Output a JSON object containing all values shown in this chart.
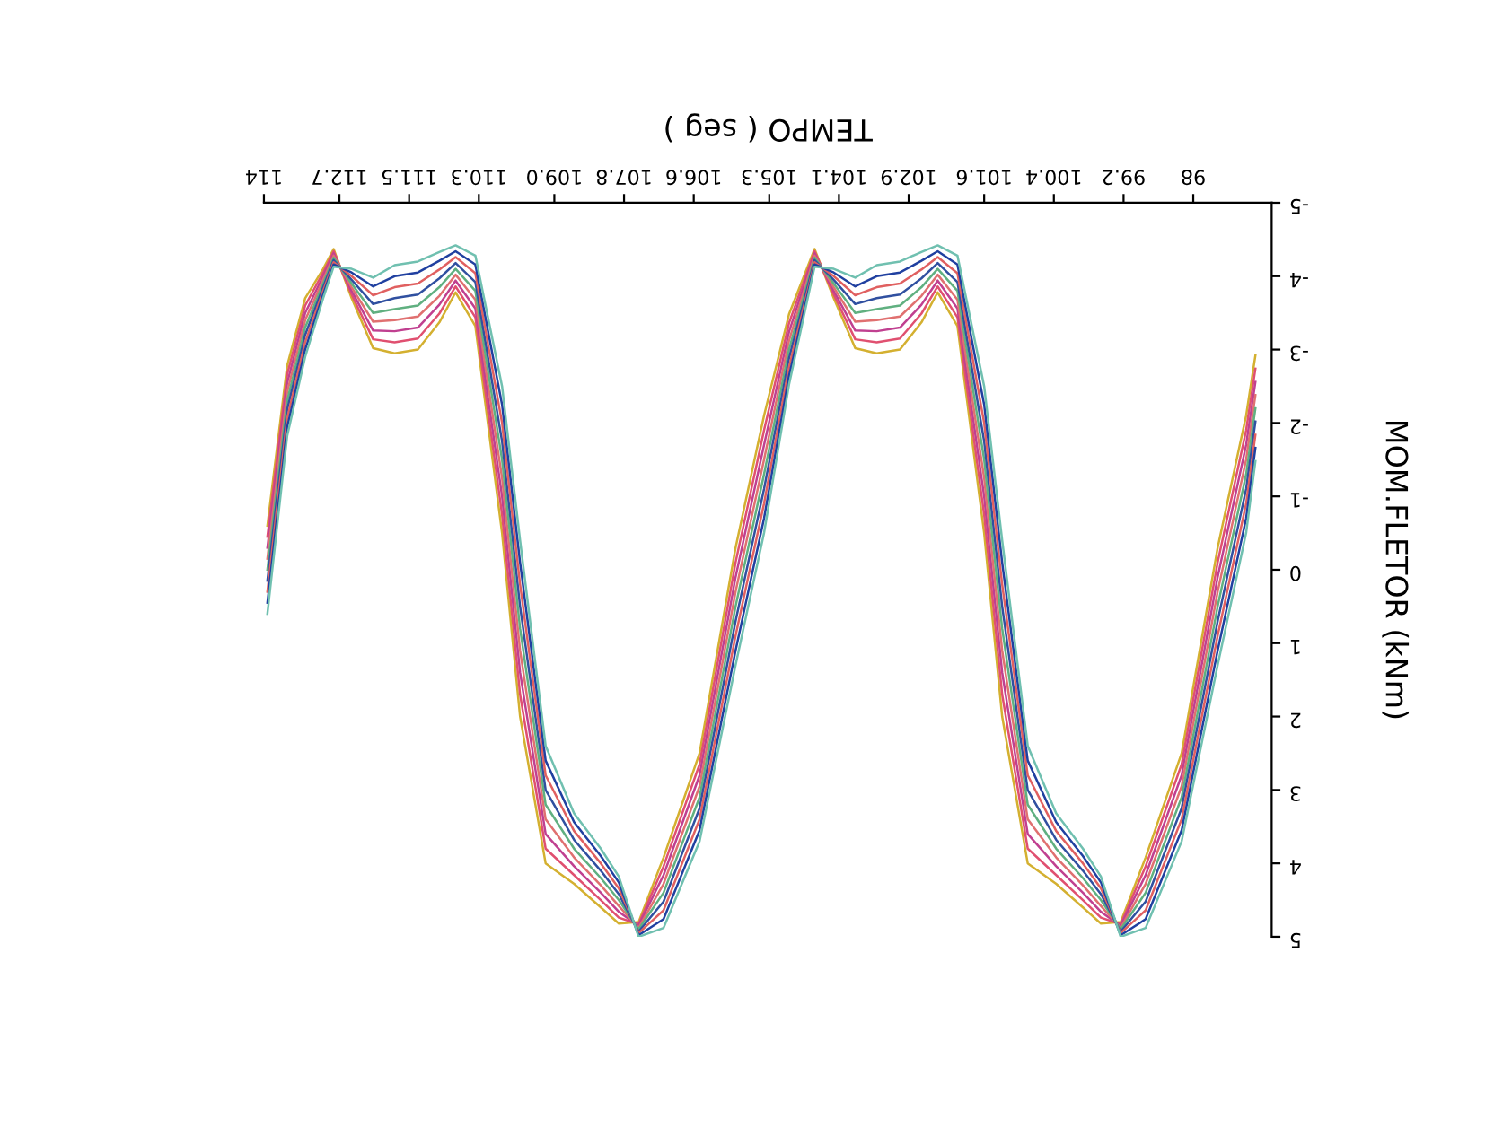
{
  "chart_data": {
    "type": "line",
    "xlabel": "TEMPO ( seg )",
    "ylabel": "MOM.FLETOR (kNm)",
    "x": [
      113.94,
      113.6,
      113.29,
      112.98,
      112.8,
      112.49,
      112.12,
      111.75,
      111.35,
      110.98,
      110.7,
      110.36,
      109.9,
      109.59,
      109.15,
      108.66,
      108.2,
      107.89,
      107.55,
      107.12,
      106.5,
      105.88,
      105.39,
      104.96,
      104.52,
      104.19,
      103.82,
      103.45,
      103.05,
      102.68,
      102.4,
      102.06,
      101.6,
      101.29,
      100.85,
      100.36,
      99.9,
      99.59,
      99.25,
      98.82,
      98.2,
      97.58,
      97.09,
      96.93
    ],
    "series": [
      {
        "color": "#d4b030",
        "values": [
          -0.6,
          -2.78,
          -3.7,
          -4.1,
          -4.37,
          -3.7,
          -3.02,
          -2.95,
          -3.0,
          -3.37,
          -3.78,
          -3.32,
          -0.5,
          2.0,
          4.0,
          4.28,
          4.6,
          4.82,
          4.8,
          3.92,
          2.5,
          -0.3,
          -2.1,
          -3.48,
          -4.37,
          -3.7,
          -3.02,
          -2.95,
          -3.0,
          -3.37,
          -3.78,
          -3.32,
          -0.5,
          2.0,
          4.0,
          4.28,
          4.6,
          4.82,
          4.8,
          3.92,
          2.5,
          -0.3,
          -2.1,
          -2.92
        ]
      },
      {
        "color": "#e05070",
        "values": [
          -0.45,
          -2.66,
          -3.6,
          -4.05,
          -4.34,
          -3.75,
          -3.14,
          -3.1,
          -3.15,
          -3.49,
          -3.86,
          -3.44,
          -0.75,
          1.7,
          3.8,
          4.16,
          4.5,
          4.74,
          4.83,
          4.04,
          2.65,
          -0.1,
          -1.9,
          -3.36,
          -4.34,
          -3.75,
          -3.14,
          -3.1,
          -3.15,
          -3.49,
          -3.86,
          -3.44,
          -0.75,
          1.7,
          3.8,
          4.16,
          4.5,
          4.74,
          4.83,
          4.04,
          2.65,
          -0.1,
          -1.9,
          -2.74
        ]
      },
      {
        "color": "#c04090",
        "values": [
          -0.3,
          -2.54,
          -3.5,
          -4.0,
          -4.31,
          -3.8,
          -3.26,
          -3.25,
          -3.3,
          -3.61,
          -3.94,
          -3.56,
          -1.0,
          1.4,
          3.6,
          4.04,
          4.4,
          4.66,
          4.85,
          4.16,
          2.8,
          0.1,
          -1.7,
          -3.24,
          -4.31,
          -3.8,
          -3.26,
          -3.25,
          -3.3,
          -3.61,
          -3.94,
          -3.56,
          -1.0,
          1.4,
          3.6,
          4.04,
          4.4,
          4.66,
          4.85,
          4.16,
          2.8,
          0.1,
          -1.7,
          -2.56
        ]
      },
      {
        "color": "#e07070",
        "values": [
          -0.15,
          -2.42,
          -3.4,
          -3.95,
          -4.28,
          -3.85,
          -3.38,
          -3.4,
          -3.45,
          -3.73,
          -4.02,
          -3.68,
          -1.25,
          1.1,
          3.4,
          3.92,
          4.3,
          4.58,
          4.88,
          4.28,
          2.95,
          0.3,
          -1.5,
          -3.12,
          -4.28,
          -3.85,
          -3.38,
          -3.4,
          -3.45,
          -3.73,
          -4.02,
          -3.68,
          -1.25,
          1.1,
          3.4,
          3.92,
          4.3,
          4.58,
          4.88,
          4.28,
          2.95,
          0.3,
          -1.5,
          -2.38
        ]
      },
      {
        "color": "#60b080",
        "values": [
          0.0,
          -2.3,
          -3.3,
          -3.9,
          -4.25,
          -3.9,
          -3.5,
          -3.55,
          -3.6,
          -3.85,
          -4.1,
          -3.8,
          -1.5,
          0.8,
          3.2,
          3.8,
          4.2,
          4.5,
          4.9,
          4.4,
          3.1,
          0.5,
          -1.3,
          -3.0,
          -4.25,
          -3.9,
          -3.5,
          -3.55,
          -3.6,
          -3.85,
          -4.1,
          -3.8,
          -1.5,
          0.8,
          3.2,
          3.8,
          4.2,
          4.5,
          4.9,
          4.4,
          3.1,
          0.5,
          -1.3,
          -2.2
        ]
      },
      {
        "color": "#3050a0",
        "values": [
          0.15,
          -2.18,
          -3.2,
          -3.85,
          -4.22,
          -3.95,
          -3.62,
          -3.7,
          -3.75,
          -3.97,
          -4.18,
          -3.92,
          -1.75,
          0.5,
          3.0,
          3.68,
          4.1,
          4.42,
          4.93,
          4.52,
          3.25,
          0.7,
          -1.1,
          -2.88,
          -4.22,
          -3.95,
          -3.62,
          -3.7,
          -3.75,
          -3.97,
          -4.18,
          -3.92,
          -1.75,
          0.5,
          3.0,
          3.68,
          4.1,
          4.42,
          4.93,
          4.52,
          3.25,
          0.7,
          -1.1,
          -2.02
        ]
      },
      {
        "color": "#e06060",
        "values": [
          0.3,
          -2.06,
          -3.1,
          -3.8,
          -4.19,
          -4.0,
          -3.74,
          -3.85,
          -3.9,
          -4.09,
          -4.26,
          -4.04,
          -2.0,
          0.2,
          2.8,
          3.56,
          4.0,
          4.34,
          4.95,
          4.64,
          3.4,
          0.9,
          -0.9,
          -2.76,
          -4.19,
          -4.0,
          -3.74,
          -3.85,
          -3.9,
          -4.09,
          -4.26,
          -4.04,
          -2.0,
          0.2,
          2.8,
          3.56,
          4.0,
          4.34,
          4.95,
          4.64,
          3.4,
          0.9,
          -0.9,
          -1.84
        ]
      },
      {
        "color": "#2040a0",
        "values": [
          0.45,
          -1.94,
          -3.0,
          -3.75,
          -4.16,
          -4.05,
          -3.86,
          -4.0,
          -4.05,
          -4.21,
          -4.34,
          -4.16,
          -2.25,
          -0.1,
          2.6,
          3.44,
          3.9,
          4.26,
          4.98,
          4.76,
          3.55,
          1.1,
          -0.7,
          -2.64,
          -4.16,
          -4.05,
          -3.86,
          -4.0,
          -4.05,
          -4.21,
          -4.34,
          -4.16,
          -2.25,
          -0.1,
          2.6,
          3.44,
          3.9,
          4.26,
          4.98,
          4.76,
          3.55,
          1.1,
          -0.7,
          -1.66
        ]
      },
      {
        "color": "#70c0b0",
        "values": [
          0.6,
          -1.82,
          -2.9,
          -3.7,
          -4.13,
          -4.1,
          -3.98,
          -4.15,
          -4.2,
          -4.33,
          -4.42,
          -4.28,
          -2.5,
          -0.4,
          2.4,
          3.32,
          3.8,
          4.18,
          5.0,
          4.88,
          3.7,
          1.3,
          -0.5,
          -2.52,
          -4.13,
          -4.1,
          -3.98,
          -4.15,
          -4.2,
          -4.33,
          -4.42,
          -4.28,
          -2.5,
          -0.4,
          2.4,
          3.32,
          3.8,
          4.18,
          5.0,
          4.88,
          3.7,
          1.3,
          -0.5,
          -1.48
        ]
      }
    ],
    "xlim": [
      114,
      96.65
    ],
    "xticks": [
      114,
      112.7,
      111.5,
      110.3,
      {
        "value": 109,
        "label": "109.0"
      },
      107.8,
      106.6,
      105.3,
      104.1,
      102.9,
      101.6,
      100.4,
      99.2,
      98
    ],
    "ylim": [
      5,
      -5
    ],
    "yticks": [
      -5,
      -4,
      -3,
      -2,
      -1,
      0,
      1,
      2,
      3,
      4,
      5
    ],
    "grid": false,
    "legend": false
  }
}
